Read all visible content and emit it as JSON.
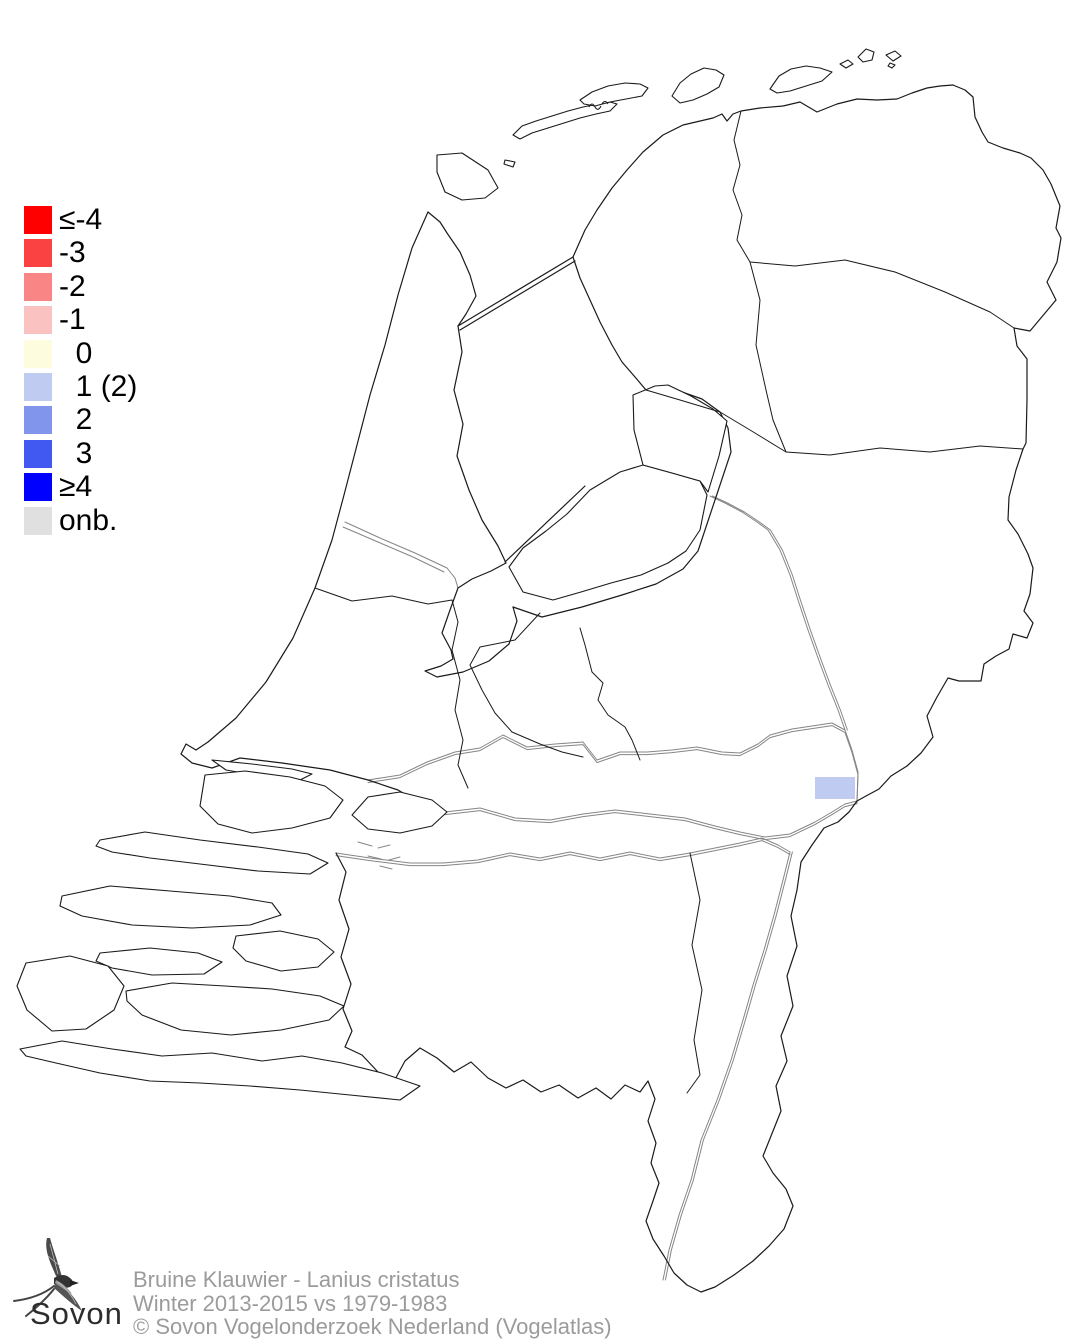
{
  "page": {
    "background": "#ffffff"
  },
  "legend": {
    "items": [
      {
        "label": "≤-4",
        "color": "#ff0000"
      },
      {
        "label": "-3",
        "color": "#fb4242"
      },
      {
        "label": "-2",
        "color": "#f98585"
      },
      {
        "label": "-1",
        "color": "#fbc2c2"
      },
      {
        "label": "  0",
        "color": "#fefcdf"
      },
      {
        "label": "  1 (2)",
        "color": "#c0cbf2"
      },
      {
        "label": "  2",
        "color": "#8295ec"
      },
      {
        "label": "  3",
        "color": "#4159f0"
      },
      {
        "label": "≥4",
        "color": "#0000ff"
      },
      {
        "label": "onb.",
        "color": "#e0e0e0"
      }
    ]
  },
  "map": {
    "region": "Nederland",
    "highlight": {
      "legend_value": "1",
      "color": "#c0cbf2"
    },
    "line_color": "#1a1a1a",
    "water_line_color": "#858585"
  },
  "caption": {
    "line1": "Bruine Klauwier - Lanius cristatus",
    "line2": "Winter 2013-2015 vs 1979-1983",
    "line3": "© Sovon Vogelonderzoek Nederland (Vogelatlas)"
  },
  "logo": {
    "text": "Sovon"
  }
}
